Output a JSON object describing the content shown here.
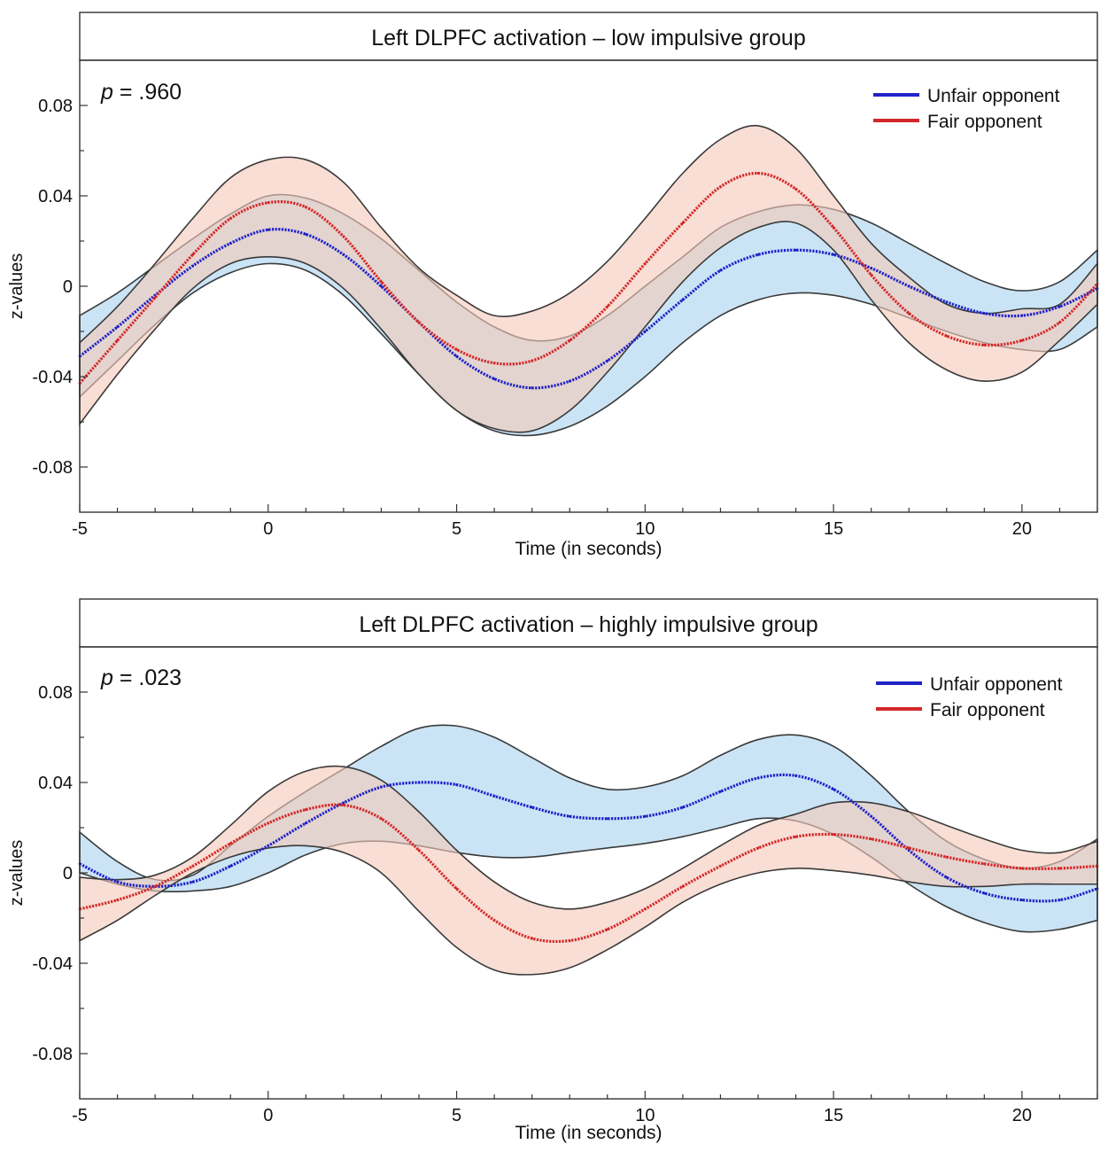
{
  "chart_data": [
    {
      "type": "line",
      "title": "Left DLPFC activation – low impulsive group",
      "annotation": {
        "prefix": "p",
        "text": " = .960"
      },
      "xlabel": "Time (in seconds)",
      "ylabel": "z-values",
      "xlim": [
        -5,
        22
      ],
      "ylim": [
        -0.1,
        0.1
      ],
      "xticks": [
        -5,
        0,
        5,
        10,
        15,
        20
      ],
      "xtick_labels": [
        "-5",
        "0",
        "5",
        "10",
        "15",
        "20"
      ],
      "yticks": [
        0.08,
        0.04,
        0,
        -0.04,
        -0.08
      ],
      "ytick_labels": [
        "0.08",
        "0.04",
        "0",
        "-0.04",
        "-0.08"
      ],
      "legend_position": "top-right",
      "series": [
        {
          "name": "Unfair opponent",
          "color": "#1f22c8",
          "band_color": "#a9d4ef",
          "x": [
            -5,
            -4,
            -3,
            -2,
            -1,
            0,
            1,
            2,
            3,
            4,
            5,
            6,
            7,
            8,
            9,
            10,
            11,
            12,
            13,
            14,
            15,
            16,
            17,
            18,
            19,
            20,
            21,
            22
          ],
          "mean": [
            -0.031,
            -0.018,
            -0.004,
            0.009,
            0.019,
            0.025,
            0.023,
            0.014,
            0.0,
            -0.016,
            -0.031,
            -0.041,
            -0.045,
            -0.042,
            -0.033,
            -0.02,
            -0.006,
            0.007,
            0.014,
            0.016,
            0.014,
            0.008,
            0.0,
            -0.007,
            -0.012,
            -0.013,
            -0.009,
            -0.001
          ],
          "lower": [
            -0.049,
            -0.033,
            -0.017,
            -0.003,
            0.006,
            0.01,
            0.007,
            -0.004,
            -0.021,
            -0.039,
            -0.055,
            -0.064,
            -0.066,
            -0.062,
            -0.053,
            -0.04,
            -0.025,
            -0.013,
            -0.006,
            -0.003,
            -0.004,
            -0.008,
            -0.014,
            -0.02,
            -0.025,
            -0.028,
            -0.028,
            -0.018
          ],
          "upper": [
            -0.013,
            -0.003,
            0.009,
            0.021,
            0.032,
            0.04,
            0.039,
            0.032,
            0.021,
            0.007,
            -0.007,
            -0.018,
            -0.024,
            -0.022,
            -0.013,
            0.0,
            0.013,
            0.026,
            0.033,
            0.036,
            0.034,
            0.028,
            0.019,
            0.01,
            0.002,
            -0.002,
            0.002,
            0.016
          ]
        },
        {
          "name": "Fair opponent",
          "color": "#d42828",
          "band_color": "#f3c9b9",
          "x": [
            -5,
            -4,
            -3,
            -2,
            -1,
            0,
            1,
            2,
            3,
            4,
            5,
            6,
            7,
            8,
            9,
            10,
            11,
            12,
            13,
            14,
            15,
            16,
            17,
            18,
            19,
            20,
            21,
            22
          ],
          "mean": [
            -0.043,
            -0.024,
            -0.005,
            0.014,
            0.03,
            0.037,
            0.035,
            0.022,
            0.002,
            -0.016,
            -0.028,
            -0.034,
            -0.033,
            -0.024,
            -0.009,
            0.01,
            0.028,
            0.044,
            0.05,
            0.043,
            0.026,
            0.005,
            -0.012,
            -0.022,
            -0.026,
            -0.024,
            -0.016,
            0.001
          ],
          "lower": [
            -0.061,
            -0.039,
            -0.019,
            -0.001,
            0.01,
            0.013,
            0.01,
            -0.001,
            -0.019,
            -0.039,
            -0.055,
            -0.063,
            -0.064,
            -0.055,
            -0.038,
            -0.018,
            0.002,
            0.017,
            0.026,
            0.028,
            0.016,
            -0.006,
            -0.025,
            -0.037,
            -0.042,
            -0.038,
            -0.024,
            -0.008
          ],
          "upper": [
            -0.025,
            -0.009,
            0.01,
            0.03,
            0.048,
            0.056,
            0.056,
            0.046,
            0.026,
            0.008,
            -0.004,
            -0.013,
            -0.011,
            -0.003,
            0.011,
            0.03,
            0.05,
            0.065,
            0.071,
            0.061,
            0.04,
            0.019,
            0.004,
            -0.008,
            -0.012,
            -0.01,
            -0.008,
            0.01
          ]
        }
      ]
    },
    {
      "type": "line",
      "title": "Left DLPFC activation – highly impulsive group",
      "annotation": {
        "prefix": "p",
        "text": " = .023"
      },
      "xlabel": "Time (in seconds)",
      "ylabel": "z-values",
      "xlim": [
        -5,
        22
      ],
      "ylim": [
        -0.1,
        0.1
      ],
      "xticks": [
        -5,
        0,
        5,
        10,
        15,
        20
      ],
      "xtick_labels": [
        "-5",
        "0",
        "5",
        "10",
        "15",
        "20"
      ],
      "yticks": [
        0.08,
        0.04,
        0,
        -0.04,
        -0.08
      ],
      "ytick_labels": [
        "0.08",
        "0.04",
        "0",
        "-0.04",
        "-0.08"
      ],
      "legend_position": "top-right",
      "series": [
        {
          "name": "Unfair opponent",
          "color": "#1f22c8",
          "band_color": "#a9d4ef",
          "x": [
            -5,
            -4,
            -3,
            -2,
            -1,
            0,
            1,
            2,
            3,
            4,
            5,
            6,
            7,
            8,
            9,
            10,
            11,
            12,
            13,
            14,
            15,
            16,
            17,
            18,
            19,
            20,
            21,
            22
          ],
          "mean": [
            0.004,
            -0.004,
            -0.006,
            -0.004,
            0.003,
            0.012,
            0.022,
            0.031,
            0.038,
            0.04,
            0.039,
            0.034,
            0.029,
            0.025,
            0.024,
            0.025,
            0.029,
            0.036,
            0.042,
            0.043,
            0.037,
            0.025,
            0.01,
            -0.002,
            -0.009,
            -0.012,
            -0.012,
            -0.007
          ],
          "lower": [
            0.0,
            -0.005,
            -0.008,
            -0.008,
            -0.006,
            0.0,
            0.008,
            0.013,
            0.014,
            0.012,
            0.009,
            0.007,
            0.007,
            0.009,
            0.011,
            0.013,
            0.016,
            0.02,
            0.024,
            0.023,
            0.017,
            0.007,
            -0.005,
            -0.015,
            -0.022,
            -0.026,
            -0.025,
            -0.021
          ],
          "upper": [
            0.018,
            0.005,
            -0.003,
            -0.001,
            0.012,
            0.025,
            0.036,
            0.046,
            0.056,
            0.064,
            0.065,
            0.06,
            0.051,
            0.042,
            0.037,
            0.038,
            0.043,
            0.052,
            0.059,
            0.061,
            0.056,
            0.043,
            0.027,
            0.014,
            0.006,
            0.002,
            0.005,
            0.015
          ]
        },
        {
          "name": "Fair opponent",
          "color": "#d42828",
          "band_color": "#f3c9b9",
          "x": [
            -5,
            -4,
            -3,
            -2,
            -1,
            0,
            1,
            2,
            3,
            4,
            5,
            6,
            7,
            8,
            9,
            10,
            11,
            12,
            13,
            14,
            15,
            16,
            17,
            18,
            19,
            20,
            21,
            22
          ],
          "mean": [
            -0.016,
            -0.012,
            -0.006,
            0.003,
            0.013,
            0.022,
            0.028,
            0.03,
            0.024,
            0.01,
            -0.007,
            -0.021,
            -0.029,
            -0.03,
            -0.025,
            -0.016,
            -0.006,
            0.003,
            0.011,
            0.016,
            0.017,
            0.015,
            0.011,
            0.007,
            0.004,
            0.002,
            0.002,
            0.003
          ],
          "lower": [
            -0.03,
            -0.021,
            -0.01,
            0.0,
            0.007,
            0.011,
            0.012,
            0.009,
            0.0,
            -0.017,
            -0.033,
            -0.043,
            -0.045,
            -0.042,
            -0.034,
            -0.024,
            -0.013,
            -0.005,
            0.0,
            0.002,
            0.001,
            -0.001,
            -0.004,
            -0.006,
            -0.006,
            -0.005,
            -0.005,
            -0.005
          ],
          "upper": [
            -0.002,
            -0.003,
            -0.001,
            0.007,
            0.021,
            0.036,
            0.045,
            0.047,
            0.041,
            0.027,
            0.01,
            -0.004,
            -0.013,
            -0.016,
            -0.013,
            -0.007,
            0.002,
            0.012,
            0.021,
            0.026,
            0.031,
            0.031,
            0.027,
            0.021,
            0.015,
            0.01,
            0.009,
            0.014
          ]
        }
      ]
    }
  ]
}
